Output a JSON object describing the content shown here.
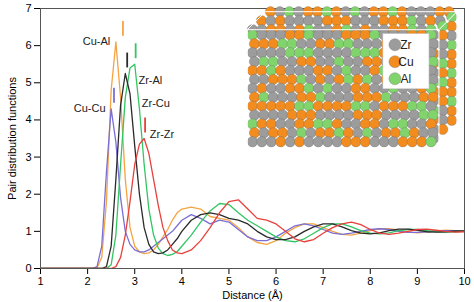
{
  "chart_data": {
    "type": "line",
    "xlabel": "Distance (Å)",
    "ylabel": "Pair distribution functions",
    "xlim": [
      1,
      10
    ],
    "ylim": [
      0,
      7
    ],
    "xticks": [
      1,
      2,
      3,
      4,
      5,
      6,
      7,
      8,
      9,
      10
    ],
    "yticks": [
      0,
      1,
      2,
      3,
      4,
      5,
      6,
      7
    ],
    "x": [
      1,
      1.5,
      2,
      2.1,
      2.2,
      2.3,
      2.4,
      2.5,
      2.6,
      2.7,
      2.8,
      2.9,
      3,
      3.1,
      3.2,
      3.3,
      3.4,
      3.5,
      3.6,
      3.7,
      3.8,
      3.9,
      4,
      4.2,
      4.4,
      4.6,
      4.8,
      5,
      5.2,
      5.4,
      5.6,
      5.8,
      6,
      6.2,
      6.4,
      6.6,
      6.8,
      7,
      7.2,
      7.4,
      7.6,
      7.8,
      8,
      8.2,
      8.4,
      8.6,
      8.8,
      9,
      9.2,
      9.4,
      9.6,
      9.8,
      10
    ],
    "series": [
      {
        "name": "Cu-Al",
        "color": "#f5a443",
        "reference": 2.75,
        "values": [
          0,
          0,
          0,
          0,
          0.02,
          0.3,
          1.8,
          4.8,
          6.1,
          4.6,
          2.4,
          1.1,
          0.6,
          0.45,
          0.4,
          0.42,
          0.5,
          0.65,
          0.85,
          1.05,
          1.3,
          1.5,
          1.6,
          1.65,
          1.6,
          1.4,
          1.35,
          1.3,
          1.1,
          0.85,
          0.7,
          0.65,
          0.75,
          0.95,
          1.1,
          1.2,
          1.2,
          1.1,
          1.0,
          0.92,
          0.9,
          0.95,
          1.02,
          1.07,
          1.07,
          1.03,
          0.98,
          0.96,
          0.98,
          1.01,
          1.03,
          1.02,
          1.0
        ]
      },
      {
        "name": "Cu-Cu",
        "color": "#7b6fd6",
        "reference": 2.56,
        "values": [
          0,
          0,
          0,
          0,
          0.05,
          0.6,
          2.6,
          4.3,
          3.4,
          1.9,
          1.0,
          0.65,
          0.5,
          0.45,
          0.45,
          0.5,
          0.6,
          0.7,
          0.8,
          0.9,
          1.0,
          1.15,
          1.3,
          1.45,
          1.35,
          1.2,
          1.3,
          1.25,
          1.05,
          0.85,
          0.75,
          0.75,
          0.85,
          1.0,
          1.15,
          1.2,
          1.15,
          1.05,
          0.95,
          0.92,
          0.95,
          1.0,
          1.05,
          1.07,
          1.05,
          1.0,
          0.97,
          0.97,
          0.99,
          1.01,
          1.02,
          1.01,
          1.0
        ]
      },
      {
        "name": "Zr-Al",
        "color": "#33c463",
        "reference": 3.02,
        "values": [
          0,
          0,
          0,
          0,
          0,
          0,
          0,
          0.1,
          0.9,
          2.8,
          4.6,
          5.4,
          5.5,
          4.3,
          2.8,
          1.6,
          0.9,
          0.55,
          0.4,
          0.35,
          0.38,
          0.45,
          0.6,
          0.9,
          1.25,
          1.55,
          1.75,
          1.72,
          1.5,
          1.3,
          1.15,
          1.0,
          0.85,
          0.75,
          0.72,
          0.8,
          0.95,
          1.1,
          1.2,
          1.2,
          1.12,
          1.02,
          0.95,
          0.93,
          0.96,
          1.02,
          1.05,
          1.05,
          1.02,
          0.99,
          0.98,
          0.99,
          1.0
        ]
      },
      {
        "name": "Zr-Cu",
        "color": "#2b2b2b",
        "reference": 2.84,
        "values": [
          0,
          0,
          0,
          0,
          0,
          0,
          0.05,
          0.6,
          2.4,
          4.4,
          5.25,
          4.7,
          3.3,
          2.0,
          1.1,
          0.65,
          0.45,
          0.4,
          0.42,
          0.5,
          0.65,
          0.8,
          1.0,
          1.3,
          1.45,
          1.5,
          1.45,
          1.35,
          1.3,
          1.2,
          1.0,
          0.85,
          0.78,
          0.78,
          0.85,
          1.0,
          1.12,
          1.2,
          1.2,
          1.12,
          1.02,
          0.95,
          0.93,
          0.96,
          1.02,
          1.06,
          1.06,
          1.03,
          0.99,
          0.98,
          0.99,
          1.01,
          1.01
        ]
      },
      {
        "name": "Zr-Zr",
        "color": "#e8413c",
        "reference": 3.22,
        "values": [
          0,
          0,
          0,
          0,
          0,
          0,
          0,
          0,
          0.05,
          0.3,
          0.9,
          1.8,
          2.8,
          3.35,
          3.5,
          3.1,
          2.4,
          1.7,
          1.1,
          0.75,
          0.5,
          0.42,
          0.4,
          0.5,
          0.75,
          1.1,
          1.5,
          1.8,
          1.85,
          1.6,
          1.35,
          1.3,
          1.2,
          1.0,
          0.8,
          0.72,
          0.78,
          0.95,
          1.1,
          1.2,
          1.25,
          1.18,
          1.05,
          0.95,
          0.92,
          0.95,
          1.0,
          1.05,
          1.06,
          1.03,
          1.0,
          0.98,
          0.99
        ]
      }
    ],
    "inset_legend": [
      {
        "name": "Zr",
        "color": "#9c9c9c"
      },
      {
        "name": "Cu",
        "color": "#f28c1e"
      },
      {
        "name": "Al",
        "color": "#80d46b"
      }
    ]
  }
}
